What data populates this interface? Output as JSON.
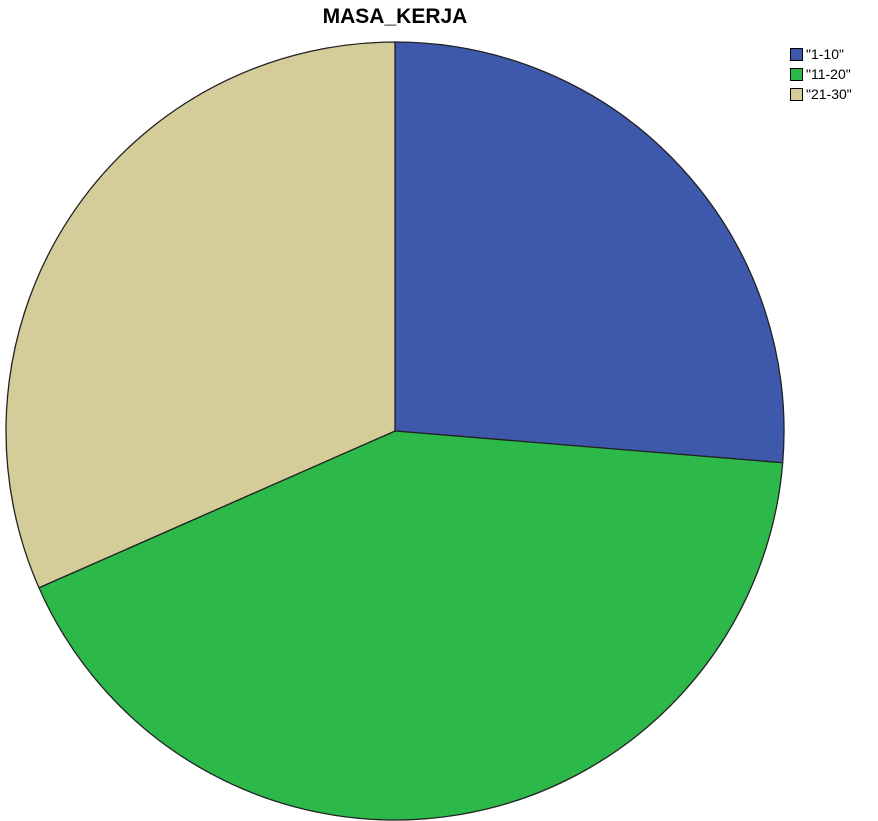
{
  "chart_data": {
    "type": "pie",
    "title": "MASA_KERJA",
    "categories": [
      "\"1-10\"",
      "\"11-20\"",
      "\"21-30\""
    ],
    "values": [
      26.3,
      42.1,
      31.6
    ],
    "colors": [
      "#3e58ac",
      "#2db84a",
      "#d4cc99"
    ],
    "start_angle_deg": 0,
    "direction": "clockwise",
    "legend": "top-right"
  }
}
